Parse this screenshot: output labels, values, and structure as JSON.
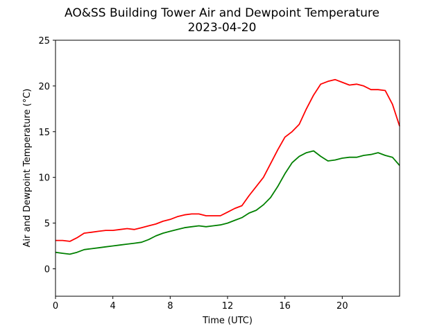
{
  "chart_data": {
    "type": "line",
    "title": "AO&SS Building Tower Air and Dewpoint Temperature",
    "subtitle": "2023-04-20",
    "xlabel": "Time (UTC)",
    "ylabel": "Air and Dewpoint Temperature (°C)",
    "xlim": [
      0,
      24
    ],
    "ylim": [
      -3,
      25
    ],
    "xticks": [
      0,
      4,
      8,
      12,
      16,
      20
    ],
    "yticks": [
      0,
      5,
      10,
      15,
      20,
      25
    ],
    "grid": false,
    "series": [
      {
        "color": "#ff0000",
        "x": [
          0,
          0.5,
          1,
          1.5,
          2,
          2.5,
          3,
          3.5,
          4,
          4.5,
          5,
          5.5,
          6,
          6.5,
          7,
          7.5,
          8,
          8.5,
          9,
          9.5,
          10,
          10.5,
          11,
          11.5,
          12,
          12.5,
          13,
          13.5,
          14,
          14.5,
          15,
          15.5,
          16,
          16.5,
          17,
          17.5,
          18,
          18.5,
          19,
          19.5,
          20,
          20.5,
          21,
          21.5,
          22,
          22.5,
          23,
          23.5,
          24
        ],
        "y": [
          3.1,
          3.1,
          3.0,
          3.4,
          3.9,
          4.0,
          4.1,
          4.2,
          4.2,
          4.3,
          4.4,
          4.3,
          4.5,
          4.7,
          4.9,
          5.2,
          5.4,
          5.7,
          5.9,
          6.0,
          6.0,
          5.8,
          5.8,
          5.8,
          6.2,
          6.6,
          6.9,
          8.0,
          9.0,
          10.0,
          11.5,
          13.0,
          14.4,
          15.0,
          15.8,
          17.5,
          19.0,
          20.2,
          20.5,
          20.7,
          20.4,
          20.1,
          20.2,
          20.0,
          19.6,
          19.6,
          19.5,
          18.0,
          15.6
        ]
      },
      {
        "color": "#008000",
        "x": [
          0,
          0.5,
          1,
          1.5,
          2,
          2.5,
          3,
          3.5,
          4,
          4.5,
          5,
          5.5,
          6,
          6.5,
          7,
          7.5,
          8,
          8.5,
          9,
          9.5,
          10,
          10.5,
          11,
          11.5,
          12,
          12.5,
          13,
          13.5,
          14,
          14.5,
          15,
          15.5,
          16,
          16.5,
          17,
          17.5,
          18,
          18.5,
          19,
          19.5,
          20,
          20.5,
          21,
          21.5,
          22,
          22.5,
          23,
          23.5,
          24
        ],
        "y": [
          1.8,
          1.7,
          1.6,
          1.8,
          2.1,
          2.2,
          2.3,
          2.4,
          2.5,
          2.6,
          2.7,
          2.8,
          2.9,
          3.2,
          3.6,
          3.9,
          4.1,
          4.3,
          4.5,
          4.6,
          4.7,
          4.6,
          4.7,
          4.8,
          5.0,
          5.3,
          5.6,
          6.1,
          6.4,
          7.0,
          7.8,
          9.0,
          10.4,
          11.6,
          12.3,
          12.7,
          12.9,
          12.3,
          11.8,
          11.9,
          12.1,
          12.2,
          12.2,
          12.4,
          12.5,
          12.7,
          12.4,
          12.2,
          11.3
        ]
      }
    ]
  }
}
